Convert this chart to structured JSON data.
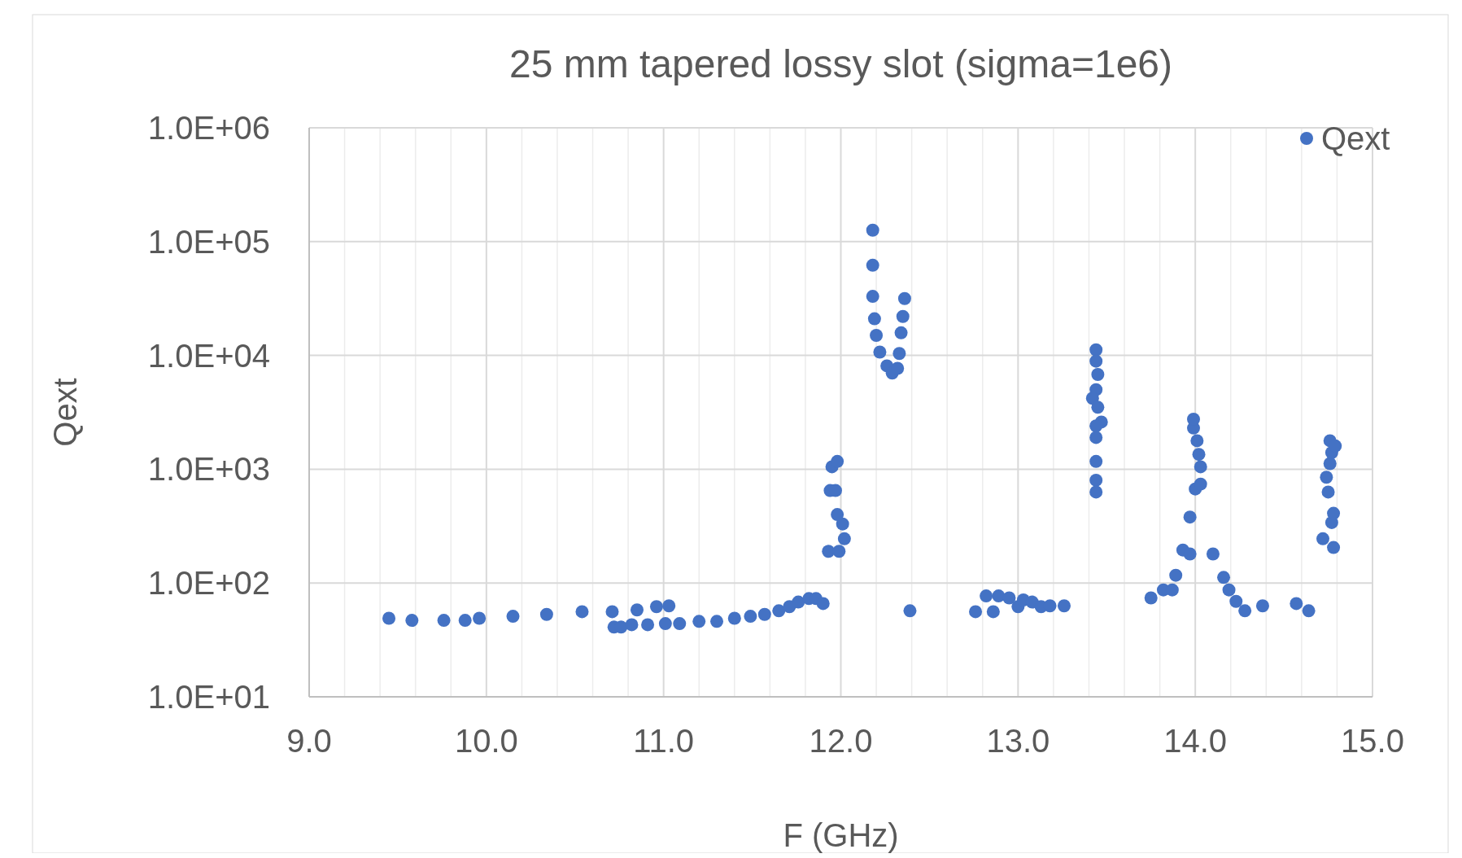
{
  "chart_data": {
    "type": "scatter",
    "title": "25 mm tapered lossy slot (sigma=1e6)",
    "xlabel": "F (GHz)",
    "ylabel": "Qext",
    "log": "y",
    "grid": true,
    "legend": "top right",
    "marker": "circle",
    "xlim": [
      9,
      15
    ],
    "xticks": [
      {
        "value": 9,
        "label": "9.0"
      },
      {
        "value": 10,
        "label": "10.0"
      },
      {
        "value": 11,
        "label": "11.0"
      },
      {
        "value": 12,
        "label": "12.0"
      },
      {
        "value": 13,
        "label": "13.0"
      },
      {
        "value": 14,
        "label": "14.0"
      },
      {
        "value": 15,
        "label": "15.0"
      }
    ],
    "ylim": [
      10,
      1000000
    ],
    "yticks": [
      {
        "value": 10,
        "label": "1.0E+01"
      },
      {
        "value": 100,
        "label": "1.0E+02"
      },
      {
        "value": 1000,
        "label": "1.0E+03"
      },
      {
        "value": 10000,
        "label": "1.0E+04"
      },
      {
        "value": 100000,
        "label": "1.0E+05"
      },
      {
        "value": 1000000,
        "label": "1.0E+06"
      }
    ],
    "series": [
      {
        "name": "Qext",
        "color": "#4472c4",
        "x": [
          9.45,
          9.58,
          9.76,
          9.88,
          9.96,
          10.15,
          10.34,
          10.54,
          10.71,
          10.72,
          10.76,
          10.85,
          10.82,
          10.91,
          10.96,
          11.03,
          11.01,
          11.09,
          11.2,
          11.3,
          11.4,
          11.49,
          11.57,
          11.65,
          11.71,
          11.76,
          11.82,
          11.86,
          11.9,
          11.93,
          11.99,
          12.02,
          12.01,
          11.98,
          11.94,
          11.97,
          11.95,
          11.98,
          12.18,
          12.18,
          12.18,
          12.19,
          12.2,
          12.22,
          12.26,
          12.29,
          12.32,
          12.33,
          12.34,
          12.35,
          12.36,
          12.39,
          12.76,
          12.82,
          12.86,
          12.89,
          12.95,
          13.0,
          13.03,
          13.08,
          13.13,
          13.18,
          13.26,
          13.44,
          13.44,
          13.45,
          13.44,
          13.42,
          13.45,
          13.47,
          13.44,
          13.44,
          13.44,
          13.44,
          13.44,
          13.75,
          13.82,
          13.87,
          13.89,
          13.93,
          13.97,
          13.97,
          14.0,
          14.03,
          14.03,
          14.02,
          14.01,
          13.99,
          13.99,
          14.1,
          14.16,
          14.19,
          14.23,
          14.28,
          14.38,
          14.57,
          14.64,
          14.72,
          14.78,
          14.77,
          14.78,
          14.75,
          14.74,
          14.76,
          14.77,
          14.76,
          14.79
        ],
        "values": [
          49,
          47,
          47,
          47,
          49,
          51,
          53,
          56,
          56,
          41,
          41,
          58,
          43,
          43,
          62,
          63,
          44,
          44,
          46,
          46,
          49,
          51,
          53,
          57,
          62,
          68,
          73,
          73,
          66,
          190,
          190,
          245,
          330,
          400,
          650,
          650,
          1050,
          1170,
          126000,
          62000,
          33000,
          21000,
          15000,
          10700,
          8100,
          7000,
          7700,
          10400,
          15800,
          22000,
          31600,
          57,
          56,
          77,
          56,
          77,
          74,
          62,
          71,
          68,
          62,
          63,
          63,
          11200,
          8900,
          6800,
          5000,
          4200,
          3500,
          2600,
          2400,
          1900,
          1170,
          800,
          630,
          74,
          87,
          87,
          117,
          195,
          180,
          380,
          670,
          740,
          1050,
          1350,
          1780,
          2300,
          2750,
          180,
          112,
          87,
          69,
          57,
          63,
          66,
          57,
          245,
          205,
          340,
          410,
          630,
          850,
          1120,
          1400,
          1780,
          1600
        ]
      }
    ]
  }
}
